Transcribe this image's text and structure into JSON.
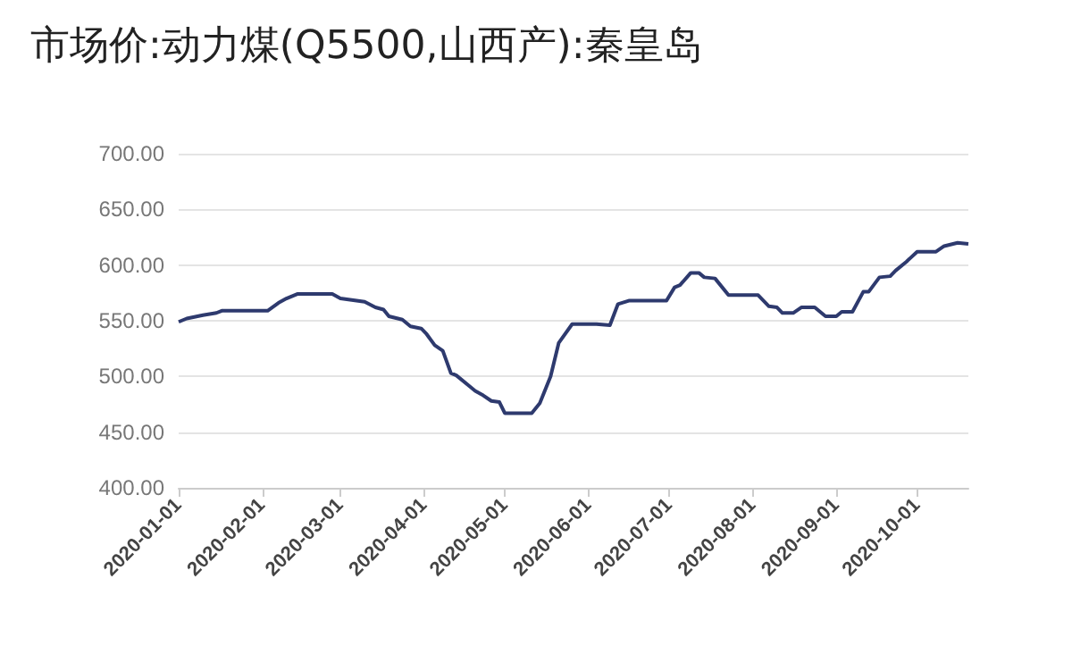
{
  "chart_data": {
    "type": "line",
    "title": "市场价:动力煤(Q5500,山西产):秦皇岛",
    "x": [
      "2020-01-01",
      "2020-01-04",
      "2020-01-10",
      "2020-01-15",
      "2020-01-17",
      "2020-02-03",
      "2020-02-07",
      "2020-02-10",
      "2020-02-14",
      "2020-02-27",
      "2020-03-01",
      "2020-03-10",
      "2020-03-14",
      "2020-03-17",
      "2020-03-19",
      "2020-03-24",
      "2020-03-27",
      "2020-03-31",
      "2020-04-02",
      "2020-04-05",
      "2020-04-08",
      "2020-04-11",
      "2020-04-13",
      "2020-04-18",
      "2020-04-20",
      "2020-04-23",
      "2020-04-26",
      "2020-04-29",
      "2020-05-01",
      "2020-05-11",
      "2020-05-14",
      "2020-05-18",
      "2020-05-21",
      "2020-05-26",
      "2020-06-04",
      "2020-06-09",
      "2020-06-12",
      "2020-06-16",
      "2020-06-30",
      "2020-07-03",
      "2020-07-05",
      "2020-07-09",
      "2020-07-12",
      "2020-07-14",
      "2020-07-18",
      "2020-07-23",
      "2020-08-03",
      "2020-08-07",
      "2020-08-10",
      "2020-08-12",
      "2020-08-16",
      "2020-08-19",
      "2020-08-24",
      "2020-08-28",
      "2020-09-01",
      "2020-09-03",
      "2020-09-07",
      "2020-09-11",
      "2020-09-13",
      "2020-09-17",
      "2020-09-21",
      "2020-09-23",
      "2020-09-27",
      "2020-10-01",
      "2020-10-08",
      "2020-10-11",
      "2020-10-16",
      "2020-10-20"
    ],
    "series": [
      {
        "color": "#2e3a6e",
        "values": [
          549,
          552,
          555,
          557,
          559,
          559,
          566,
          570,
          574,
          574,
          570,
          567,
          562,
          560,
          554,
          551,
          545,
          543,
          538,
          528,
          523,
          503,
          501,
          491,
          487,
          483,
          478,
          477,
          467,
          467,
          476,
          500,
          530,
          547,
          547,
          546,
          565,
          568,
          568,
          580,
          582,
          593,
          593,
          589,
          588,
          573,
          573,
          563,
          562,
          557,
          557,
          562,
          562,
          554,
          554,
          558,
          558,
          576,
          576,
          589,
          590,
          595,
          603,
          612,
          612,
          617,
          620,
          619
        ]
      }
    ],
    "xlim": [
      "2020-01-01",
      "2020-10-20"
    ],
    "xticks": [
      "2020-01-01",
      "2020-02-01",
      "2020-03-01",
      "2020-04-01",
      "2020-05-01",
      "2020-06-01",
      "2020-07-01",
      "2020-08-01",
      "2020-09-01",
      "2020-10-01"
    ],
    "ylim": [
      400,
      700
    ],
    "yticks": [
      {
        "value": 400,
        "label": "400.00"
      },
      {
        "value": 450,
        "label": "450.00"
      },
      {
        "value": 500,
        "label": "500.00"
      },
      {
        "value": 550,
        "label": "550.00"
      },
      {
        "value": 600,
        "label": "600.00"
      },
      {
        "value": 650,
        "label": "650.00"
      },
      {
        "value": 700,
        "label": "700.00"
      }
    ],
    "grid": "y",
    "marker": "none",
    "line_style": "solid"
  }
}
